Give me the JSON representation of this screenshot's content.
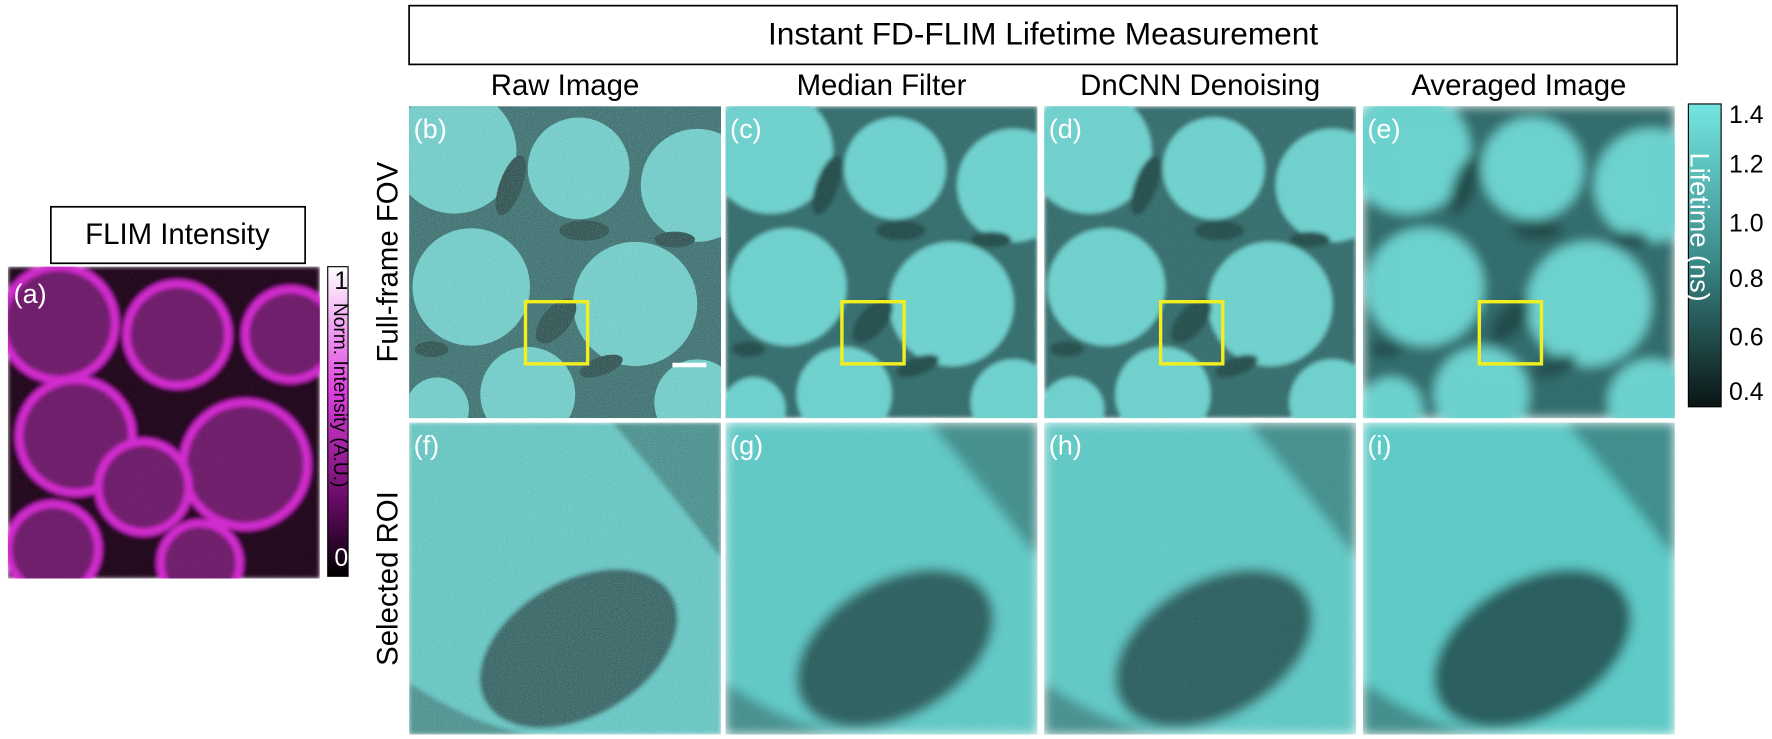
{
  "panel_a": {
    "label": "(a)",
    "title": "FLIM Intensity",
    "colorbar": {
      "label": "Norm. Intensity (A.U.)",
      "ticks": [
        "1",
        "0"
      ]
    }
  },
  "title": "Instant FD-FLIM Lifetime Measurement",
  "columns": [
    "Raw Image",
    "Median Filter",
    "DnCNN Denoising",
    "Averaged Image"
  ],
  "rows": [
    "Full-frame FOV",
    "Selected ROI"
  ],
  "panels": [
    [
      "(b)",
      "(c)",
      "(d)",
      "(e)"
    ],
    [
      "(f)",
      "(g)",
      "(h)",
      "(i)"
    ]
  ],
  "colorbar": {
    "label": "Lifetime (ns)",
    "ticks": [
      "1.4",
      "1.2",
      "1.0",
      "0.8",
      "0.6",
      "0.4"
    ]
  }
}
